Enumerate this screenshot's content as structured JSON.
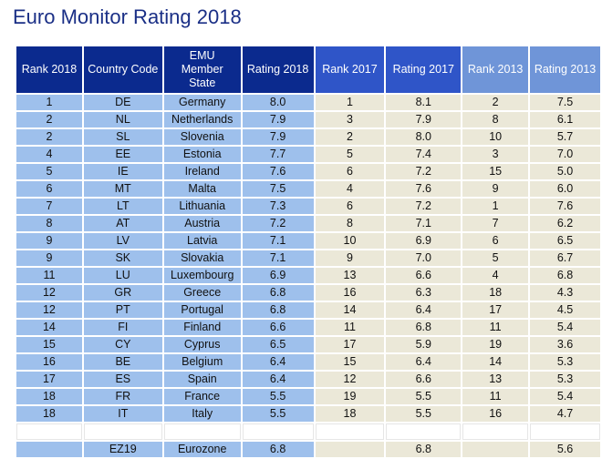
{
  "title": "Euro Monitor Rating 2018",
  "colors": {
    "header_2018": "#0b2a8e",
    "header_2017": "#2f55c8",
    "header_2013": "#6f95d8",
    "cells_2018": "#9ec0ec",
    "cells_other": "#ebe8d8",
    "title": "#1a2f86"
  },
  "headers": {
    "rank_2018": "Rank 2018",
    "country_code": "Country Code",
    "member_state_line1": "EMU",
    "member_state_line2": "Member",
    "member_state_line3": "State",
    "rating_2018": "Rating 2018",
    "rank_2017": "Rank 2017",
    "rating_2017": "Rating 2017",
    "rank_2013": "Rank 2013",
    "rating_2013": "Rating 2013"
  },
  "rows": [
    {
      "rank_2018": "1",
      "code": "DE",
      "state": "Germany",
      "rating_2018": "8.0",
      "rank_2017": "1",
      "rating_2017": "8.1",
      "rank_2013": "2",
      "rating_2013": "7.5"
    },
    {
      "rank_2018": "2",
      "code": "NL",
      "state": "Netherlands",
      "rating_2018": "7.9",
      "rank_2017": "3",
      "rating_2017": "7.9",
      "rank_2013": "8",
      "rating_2013": "6.1"
    },
    {
      "rank_2018": "2",
      "code": "SL",
      "state": "Slovenia",
      "rating_2018": "7.9",
      "rank_2017": "2",
      "rating_2017": "8.0",
      "rank_2013": "10",
      "rating_2013": "5.7"
    },
    {
      "rank_2018": "4",
      "code": "EE",
      "state": "Estonia",
      "rating_2018": "7.7",
      "rank_2017": "5",
      "rating_2017": "7.4",
      "rank_2013": "3",
      "rating_2013": "7.0"
    },
    {
      "rank_2018": "5",
      "code": "IE",
      "state": "Ireland",
      "rating_2018": "7.6",
      "rank_2017": "6",
      "rating_2017": "7.2",
      "rank_2013": "15",
      "rating_2013": "5.0"
    },
    {
      "rank_2018": "6",
      "code": "MT",
      "state": "Malta",
      "rating_2018": "7.5",
      "rank_2017": "4",
      "rating_2017": "7.6",
      "rank_2013": "9",
      "rating_2013": "6.0"
    },
    {
      "rank_2018": "7",
      "code": "LT",
      "state": "Lithuania",
      "rating_2018": "7.3",
      "rank_2017": "6",
      "rating_2017": "7.2",
      "rank_2013": "1",
      "rating_2013": "7.6"
    },
    {
      "rank_2018": "8",
      "code": "AT",
      "state": "Austria",
      "rating_2018": "7.2",
      "rank_2017": "8",
      "rating_2017": "7.1",
      "rank_2013": "7",
      "rating_2013": "6.2"
    },
    {
      "rank_2018": "9",
      "code": "LV",
      "state": "Latvia",
      "rating_2018": "7.1",
      "rank_2017": "10",
      "rating_2017": "6.9",
      "rank_2013": "6",
      "rating_2013": "6.5"
    },
    {
      "rank_2018": "9",
      "code": "SK",
      "state": "Slovakia",
      "rating_2018": "7.1",
      "rank_2017": "9",
      "rating_2017": "7.0",
      "rank_2013": "5",
      "rating_2013": "6.7"
    },
    {
      "rank_2018": "11",
      "code": "LU",
      "state": "Luxembourg",
      "rating_2018": "6.9",
      "rank_2017": "13",
      "rating_2017": "6.6",
      "rank_2013": "4",
      "rating_2013": "6.8"
    },
    {
      "rank_2018": "12",
      "code": "GR",
      "state": "Greece",
      "rating_2018": "6.8",
      "rank_2017": "16",
      "rating_2017": "6.3",
      "rank_2013": "18",
      "rating_2013": "4.3"
    },
    {
      "rank_2018": "12",
      "code": "PT",
      "state": "Portugal",
      "rating_2018": "6.8",
      "rank_2017": "14",
      "rating_2017": "6.4",
      "rank_2013": "17",
      "rating_2013": "4.5"
    },
    {
      "rank_2018": "14",
      "code": "FI",
      "state": "Finland",
      "rating_2018": "6.6",
      "rank_2017": "11",
      "rating_2017": "6.8",
      "rank_2013": "11",
      "rating_2013": "5.4"
    },
    {
      "rank_2018": "15",
      "code": "CY",
      "state": "Cyprus",
      "rating_2018": "6.5",
      "rank_2017": "17",
      "rating_2017": "5.9",
      "rank_2013": "19",
      "rating_2013": "3.6"
    },
    {
      "rank_2018": "16",
      "code": "BE",
      "state": "Belgium",
      "rating_2018": "6.4",
      "rank_2017": "15",
      "rating_2017": "6.4",
      "rank_2013": "14",
      "rating_2013": "5.3"
    },
    {
      "rank_2018": "17",
      "code": "ES",
      "state": "Spain",
      "rating_2018": "6.4",
      "rank_2017": "12",
      "rating_2017": "6.6",
      "rank_2013": "13",
      "rating_2013": "5.3"
    },
    {
      "rank_2018": "18",
      "code": "FR",
      "state": "France",
      "rating_2018": "5.5",
      "rank_2017": "19",
      "rating_2017": "5.5",
      "rank_2013": "11",
      "rating_2013": "5.4"
    },
    {
      "rank_2018": "18",
      "code": "IT",
      "state": "Italy",
      "rating_2018": "5.5",
      "rank_2017": "18",
      "rating_2017": "5.5",
      "rank_2013": "16",
      "rating_2013": "4.7"
    }
  ],
  "eurozone": {
    "rank_2018": "",
    "code": "EZ19",
    "state": "Eurozone",
    "rating_2018": "6.8",
    "rank_2017": "",
    "rating_2017": "6.8",
    "rank_2013": "",
    "rating_2013": "5.6"
  }
}
